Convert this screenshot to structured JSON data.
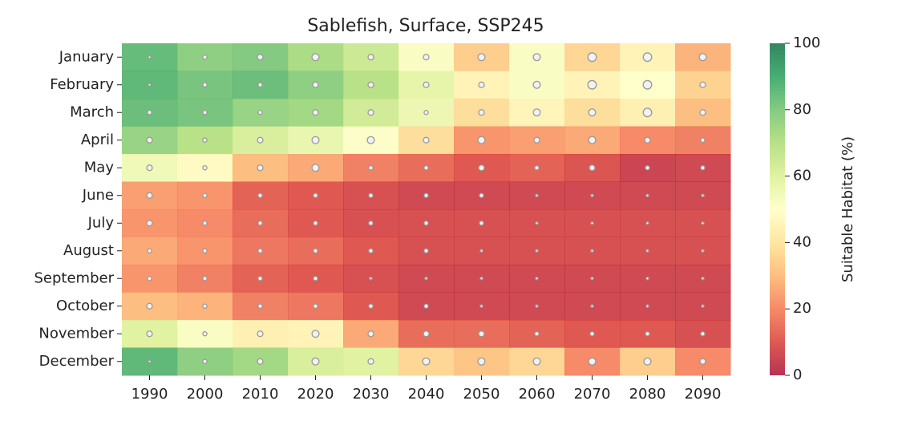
{
  "chart_data": {
    "type": "heatmap",
    "title": "Sablefish, Surface, SSP245",
    "xlabel": "",
    "ylabel": "",
    "x": [
      "1990",
      "2000",
      "2010",
      "2020",
      "2030",
      "2040",
      "2050",
      "2060",
      "2070",
      "2080",
      "2090"
    ],
    "y": [
      "January",
      "February",
      "March",
      "April",
      "May",
      "June",
      "July",
      "August",
      "September",
      "October",
      "November",
      "December"
    ],
    "values": [
      [
        85,
        78,
        80,
        72,
        65,
        52,
        34,
        52,
        36,
        45,
        28
      ],
      [
        86,
        82,
        84,
        78,
        70,
        58,
        45,
        52,
        45,
        50,
        35
      ],
      [
        84,
        82,
        76,
        74,
        64,
        56,
        38,
        46,
        38,
        44,
        30
      ],
      [
        76,
        70,
        62,
        57,
        51,
        38,
        22,
        24,
        26,
        20,
        18
      ],
      [
        55,
        48,
        30,
        26,
        18,
        14,
        10,
        12,
        9,
        5,
        6
      ],
      [
        24,
        22,
        12,
        10,
        8,
        6,
        6,
        6,
        6,
        6,
        6
      ],
      [
        22,
        20,
        14,
        10,
        8,
        8,
        8,
        8,
        8,
        8,
        8
      ],
      [
        26,
        22,
        16,
        14,
        10,
        8,
        8,
        8,
        8,
        8,
        8
      ],
      [
        22,
        18,
        12,
        10,
        8,
        6,
        6,
        6,
        6,
        6,
        6
      ],
      [
        30,
        28,
        18,
        16,
        10,
        6,
        6,
        6,
        6,
        6,
        6
      ],
      [
        60,
        52,
        44,
        45,
        26,
        14,
        14,
        12,
        10,
        10,
        8
      ],
      [
        86,
        78,
        74,
        62,
        60,
        36,
        32,
        36,
        20,
        34,
        20
      ]
    ],
    "marker_size": [
      [
        1,
        2,
        3,
        4,
        3,
        3,
        4,
        4,
        5,
        5,
        4
      ],
      [
        1,
        2,
        2,
        3,
        3,
        3,
        3,
        4,
        5,
        5,
        3
      ],
      [
        2,
        2,
        2,
        3,
        3,
        2,
        3,
        4,
        4,
        5,
        3
      ],
      [
        3,
        2,
        3,
        4,
        4,
        3,
        4,
        3,
        4,
        3,
        2
      ],
      [
        3,
        2,
        3,
        4,
        2,
        2,
        3,
        2,
        3,
        2,
        2
      ],
      [
        3,
        2,
        2,
        2,
        2,
        2,
        2,
        1,
        1,
        1,
        1
      ],
      [
        3,
        2,
        2,
        2,
        2,
        2,
        2,
        1,
        1,
        1,
        1
      ],
      [
        2,
        2,
        2,
        2,
        2,
        2,
        1,
        1,
        1,
        1,
        1
      ],
      [
        2,
        2,
        2,
        2,
        1,
        1,
        1,
        1,
        1,
        1,
        1
      ],
      [
        3,
        2,
        2,
        2,
        2,
        2,
        1,
        1,
        1,
        1,
        1
      ],
      [
        3,
        2,
        3,
        4,
        3,
        3,
        3,
        2,
        2,
        2,
        2
      ],
      [
        1,
        2,
        3,
        4,
        3,
        4,
        4,
        4,
        4,
        4,
        3
      ]
    ],
    "colorbar": {
      "label": "Suitable Habitat (%)",
      "range": [
        0,
        100
      ],
      "ticks": [
        0,
        20,
        40,
        60,
        80,
        100
      ],
      "colormap": "RdYlGn"
    },
    "grid": false,
    "legend": "none"
  }
}
